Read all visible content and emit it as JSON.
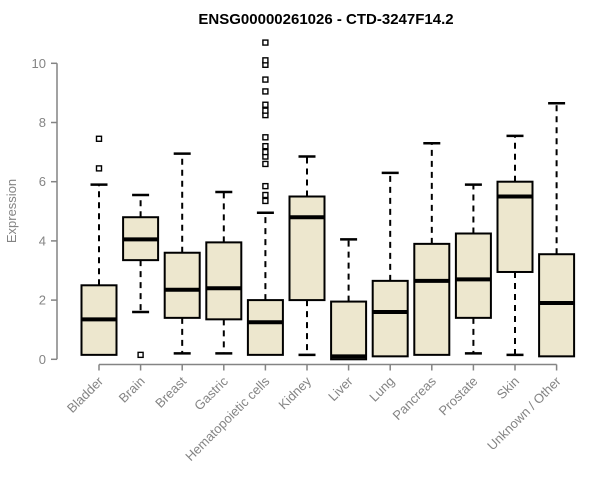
{
  "chart_data": {
    "type": "boxplot",
    "title": "ENSG00000261026 - CTD-3247F14.2",
    "ylabel": "Expression",
    "xlabel": "",
    "ylim": [
      0,
      11
    ],
    "yticks": [
      0,
      2,
      4,
      6,
      8,
      10
    ],
    "grid": false,
    "legend": "none",
    "colors": {
      "box_fill": "#EDE7CE",
      "box_stroke": "#000000",
      "median": "#000000",
      "whisker": "#000000",
      "outlier_stroke": "#000000",
      "outlier_fill": "#ffffff",
      "axis": "#848484",
      "title": "#000000",
      "background": "#ffffff"
    },
    "categories": [
      "Bladder",
      "Brain",
      "Breast",
      "Gastric",
      "Hematopoietic cells",
      "Kidney",
      "Liver",
      "Lung",
      "Pancreas",
      "Prostate",
      "Skin",
      "Unknown / Other"
    ],
    "boxes": [
      {
        "category": "Bladder",
        "whisker_low": 0.15,
        "q1": 0.15,
        "median": 1.35,
        "q3": 2.5,
        "whisker_high": 5.9,
        "outliers": [
          6.45,
          7.45
        ]
      },
      {
        "category": "Brain",
        "whisker_low": 1.6,
        "q1": 3.35,
        "median": 4.05,
        "q3": 4.8,
        "whisker_high": 5.55,
        "outliers": [
          0.15
        ]
      },
      {
        "category": "Breast",
        "whisker_low": 0.2,
        "q1": 1.4,
        "median": 2.35,
        "q3": 3.6,
        "whisker_high": 6.95,
        "outliers": []
      },
      {
        "category": "Gastric",
        "whisker_low": 0.2,
        "q1": 1.35,
        "median": 2.4,
        "q3": 3.95,
        "whisker_high": 5.65,
        "outliers": []
      },
      {
        "category": "Hematopoietic cells",
        "whisker_low": 0.15,
        "q1": 0.15,
        "median": 1.25,
        "q3": 2.0,
        "whisker_high": 4.95,
        "outliers": [
          5.35,
          5.55,
          5.85,
          6.6,
          6.85,
          7.0,
          7.2,
          7.5,
          8.25,
          8.4,
          8.6,
          9.05,
          9.45,
          9.95,
          10.1,
          10.7
        ]
      },
      {
        "category": "Kidney",
        "whisker_low": 0.15,
        "q1": 2.0,
        "median": 4.8,
        "q3": 5.5,
        "whisker_high": 6.85,
        "outliers": []
      },
      {
        "category": "Liver",
        "whisker_low": 0.0,
        "q1": 0.0,
        "median": 0.1,
        "q3": 1.95,
        "whisker_high": 4.05,
        "outliers": []
      },
      {
        "category": "Lung",
        "whisker_low": 0.1,
        "q1": 0.1,
        "median": 1.6,
        "q3": 2.65,
        "whisker_high": 6.3,
        "outliers": []
      },
      {
        "category": "Pancreas",
        "whisker_low": 0.15,
        "q1": 0.15,
        "median": 2.65,
        "q3": 3.9,
        "whisker_high": 7.3,
        "outliers": []
      },
      {
        "category": "Prostate",
        "whisker_low": 0.2,
        "q1": 1.4,
        "median": 2.7,
        "q3": 4.25,
        "whisker_high": 5.9,
        "outliers": []
      },
      {
        "category": "Skin",
        "whisker_low": 0.15,
        "q1": 2.95,
        "median": 5.5,
        "q3": 6.0,
        "whisker_high": 7.55,
        "outliers": []
      },
      {
        "category": "Unknown / Other",
        "whisker_low": 0.1,
        "q1": 0.1,
        "median": 1.9,
        "q3": 3.55,
        "whisker_high": 8.65,
        "outliers": []
      }
    ]
  }
}
